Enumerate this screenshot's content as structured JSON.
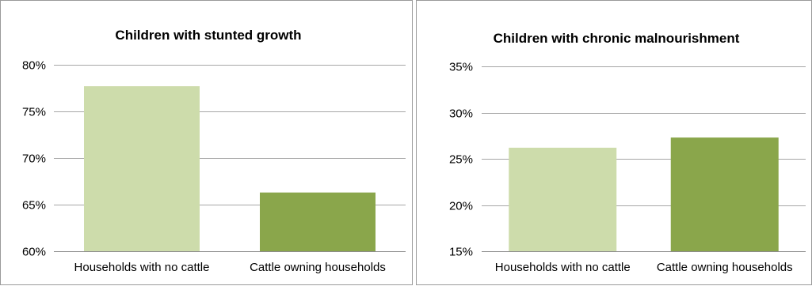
{
  "chart_data": [
    {
      "type": "bar",
      "title": "Children with stunted growth",
      "categories": [
        "Households with no cattle",
        "Cattle owning households"
      ],
      "values": [
        0.777,
        0.663
      ],
      "bar_colors": [
        "#cddcab",
        "#8aa64b"
      ],
      "ylim": [
        0.6,
        0.8
      ],
      "yticks": [
        0.6,
        0.65,
        0.7,
        0.75,
        0.8
      ],
      "ytick_labels": [
        "60%",
        "65%",
        "70%",
        "75%",
        "80%"
      ],
      "xlabel": "",
      "ylabel": "",
      "grid": true
    },
    {
      "type": "bar",
      "title": "Children with chronic malnourishment",
      "categories": [
        "Households with no cattle",
        "Cattle owning households"
      ],
      "values": [
        0.262,
        0.273
      ],
      "bar_colors": [
        "#cddcab",
        "#8aa64b"
      ],
      "ylim": [
        0.15,
        0.35
      ],
      "yticks": [
        0.15,
        0.2,
        0.25,
        0.3,
        0.35
      ],
      "ytick_labels": [
        "15%",
        "20%",
        "25%",
        "30%",
        "35%"
      ],
      "xlabel": "",
      "ylabel": "",
      "grid": true
    }
  ]
}
